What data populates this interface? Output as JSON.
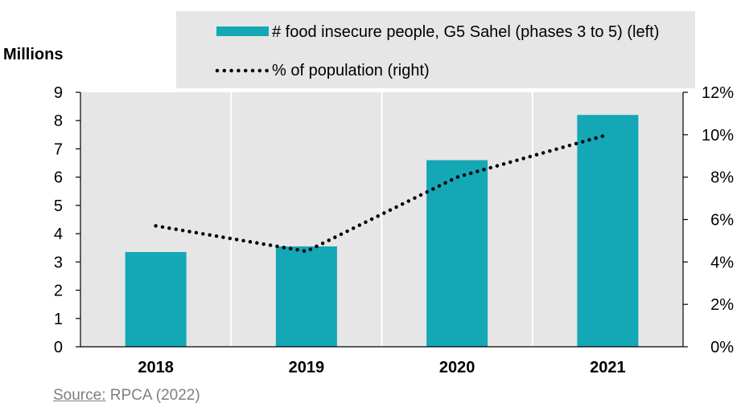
{
  "colors": {
    "bar": "#14A7B5",
    "plot_bg": "#E6E6E6",
    "legend_bg": "#E6E6E6",
    "grid": "#FFFFFF",
    "line": "#000000"
  },
  "chart_data": {
    "type": "bar",
    "categories": [
      "2018",
      "2019",
      "2020",
      "2021"
    ],
    "series": [
      {
        "name": "# food insecure people, G5 Sahel (phases 3 to 5) (left)",
        "type": "bar",
        "axis": "left",
        "values": [
          3.35,
          3.55,
          6.6,
          8.2
        ]
      },
      {
        "name": "% of population (right)",
        "type": "line",
        "style": "dotted",
        "axis": "right",
        "values": [
          5.7,
          4.5,
          8.0,
          10.0
        ]
      }
    ],
    "ylabel": "Millions",
    "ylim": [
      0,
      9
    ],
    "yticks": [
      "0",
      "1",
      "2",
      "3",
      "4",
      "5",
      "6",
      "7",
      "8",
      "9"
    ],
    "y2lim": [
      0,
      12
    ],
    "y2ticks": [
      "0%",
      "2%",
      "4%",
      "6%",
      "8%",
      "10%",
      "12%"
    ],
    "grid": true,
    "legend_position": "top-right"
  },
  "source": {
    "label": "Source:",
    "text": " RPCA (2022)"
  }
}
